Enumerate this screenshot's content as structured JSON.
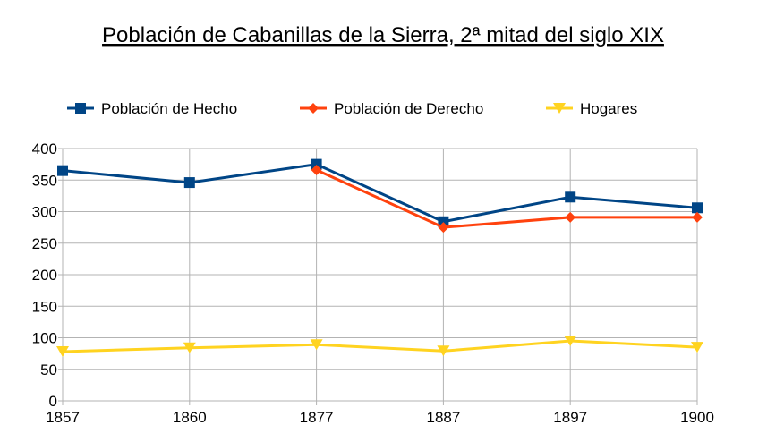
{
  "chart_data": {
    "type": "line",
    "title": "Población de Cabanillas de la Sierra, 2ª mitad del siglo XIX",
    "xlabel": "",
    "ylabel": "",
    "categories": [
      "1857",
      "1860",
      "1877",
      "1887",
      "1897",
      "1900"
    ],
    "ylim": [
      0,
      400
    ],
    "yticks": [
      0,
      50,
      100,
      150,
      200,
      250,
      300,
      350,
      400
    ],
    "grid": true,
    "legend_position": "top",
    "series": [
      {
        "name": "Población de Hecho",
        "color": "#004586",
        "marker": "square",
        "values": [
          365,
          346,
          375,
          284,
          323,
          306
        ]
      },
      {
        "name": "Población de Derecho",
        "color": "#ff420e",
        "marker": "diamond",
        "values": [
          null,
          null,
          366,
          275,
          291,
          291
        ]
      },
      {
        "name": "Hogares",
        "color": "#ffd320",
        "marker": "triangle-down",
        "values": [
          78,
          84,
          89,
          79,
          95,
          85
        ]
      }
    ]
  }
}
